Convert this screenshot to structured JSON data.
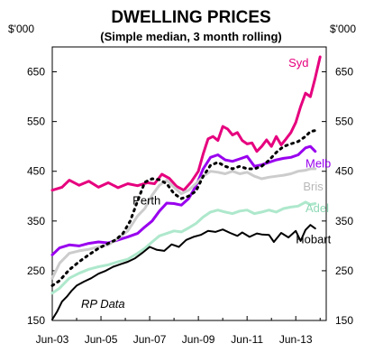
{
  "chart_data": {
    "type": "line",
    "title": "DWELLING PRICES",
    "subtitle": "(Simple median, 3 month rolling)",
    "unit_left": "$'000",
    "unit_right": "$'000",
    "source": "RP Data",
    "x_ticks": [
      "Jun-03",
      "Jun-05",
      "Jun-07",
      "Jun-09",
      "Jun-11",
      "Jun-13"
    ],
    "x_tick_years": [
      2003.5,
      2005.5,
      2007.5,
      2009.5,
      2011.5,
      2013.5
    ],
    "xlim": [
      2003.5,
      2014.75
    ],
    "ylim": [
      150,
      700
    ],
    "y_ticks": [
      150,
      250,
      350,
      450,
      550,
      650
    ],
    "y_tick_labels": [
      "150",
      "250",
      "350",
      "450",
      "550",
      "650"
    ],
    "series": [
      {
        "name": "Syd",
        "color": "#e6007e",
        "width": 3,
        "dash": "",
        "label_pos": [
          2013.2,
          660
        ],
        "points": [
          [
            2003.5,
            412
          ],
          [
            2003.9,
            418
          ],
          [
            2004.2,
            432
          ],
          [
            2004.6,
            422
          ],
          [
            2005.0,
            430
          ],
          [
            2005.4,
            418
          ],
          [
            2005.8,
            427
          ],
          [
            2006.2,
            417
          ],
          [
            2006.6,
            425
          ],
          [
            2007.0,
            421
          ],
          [
            2007.4,
            427
          ],
          [
            2007.7,
            425
          ],
          [
            2008.0,
            444
          ],
          [
            2008.3,
            436
          ],
          [
            2008.6,
            420
          ],
          [
            2008.9,
            412
          ],
          [
            2009.2,
            428
          ],
          [
            2009.5,
            450
          ],
          [
            2009.7,
            485
          ],
          [
            2009.9,
            515
          ],
          [
            2010.1,
            520
          ],
          [
            2010.3,
            512
          ],
          [
            2010.5,
            540
          ],
          [
            2010.7,
            535
          ],
          [
            2010.9,
            523
          ],
          [
            2011.1,
            528
          ],
          [
            2011.3,
            512
          ],
          [
            2011.5,
            505
          ],
          [
            2011.7,
            507
          ],
          [
            2011.9,
            490
          ],
          [
            2012.1,
            500
          ],
          [
            2012.3,
            513
          ],
          [
            2012.5,
            500
          ],
          [
            2012.7,
            520
          ],
          [
            2012.9,
            503
          ],
          [
            2013.1,
            515
          ],
          [
            2013.3,
            528
          ],
          [
            2013.5,
            548
          ],
          [
            2013.7,
            580
          ],
          [
            2013.9,
            607
          ],
          [
            2014.1,
            600
          ],
          [
            2014.3,
            638
          ],
          [
            2014.5,
            680
          ]
        ]
      },
      {
        "name": "Melb",
        "color": "#9900ee",
        "width": 3,
        "dash": "",
        "label_pos": [
          2013.9,
          458
        ],
        "points": [
          [
            2003.5,
            282
          ],
          [
            2003.8,
            296
          ],
          [
            2004.2,
            302
          ],
          [
            2004.6,
            300
          ],
          [
            2005.0,
            305
          ],
          [
            2005.4,
            308
          ],
          [
            2005.8,
            306
          ],
          [
            2006.2,
            312
          ],
          [
            2006.6,
            318
          ],
          [
            2007.0,
            325
          ],
          [
            2007.3,
            338
          ],
          [
            2007.6,
            350
          ],
          [
            2007.9,
            370
          ],
          [
            2008.2,
            386
          ],
          [
            2008.5,
            385
          ],
          [
            2008.8,
            382
          ],
          [
            2009.1,
            395
          ],
          [
            2009.4,
            420
          ],
          [
            2009.7,
            455
          ],
          [
            2010.0,
            478
          ],
          [
            2010.3,
            483
          ],
          [
            2010.6,
            473
          ],
          [
            2010.9,
            470
          ],
          [
            2011.2,
            475
          ],
          [
            2011.5,
            480
          ],
          [
            2011.8,
            460
          ],
          [
            2012.1,
            463
          ],
          [
            2012.4,
            468
          ],
          [
            2012.7,
            473
          ],
          [
            2013.0,
            476
          ],
          [
            2013.3,
            478
          ],
          [
            2013.6,
            483
          ],
          [
            2013.9,
            497
          ],
          [
            2014.1,
            500
          ],
          [
            2014.3,
            490
          ]
        ]
      },
      {
        "name": "Bris",
        "color": "#cccccc",
        "width": 3,
        "dash": "",
        "label_pos": [
          2013.8,
          411
        ],
        "points": [
          [
            2003.5,
            235
          ],
          [
            2003.8,
            265
          ],
          [
            2004.2,
            285
          ],
          [
            2004.6,
            290
          ],
          [
            2005.0,
            293
          ],
          [
            2005.4,
            298
          ],
          [
            2005.8,
            302
          ],
          [
            2006.2,
            315
          ],
          [
            2006.6,
            330
          ],
          [
            2007.0,
            360
          ],
          [
            2007.3,
            375
          ],
          [
            2007.6,
            402
          ],
          [
            2007.9,
            422
          ],
          [
            2008.2,
            432
          ],
          [
            2008.5,
            418
          ],
          [
            2008.8,
            405
          ],
          [
            2009.1,
            412
          ],
          [
            2009.4,
            425
          ],
          [
            2009.7,
            440
          ],
          [
            2010.0,
            450
          ],
          [
            2010.3,
            448
          ],
          [
            2010.6,
            445
          ],
          [
            2010.9,
            450
          ],
          [
            2011.2,
            445
          ],
          [
            2011.5,
            448
          ],
          [
            2011.8,
            440
          ],
          [
            2012.1,
            435
          ],
          [
            2012.4,
            438
          ],
          [
            2012.7,
            440
          ],
          [
            2013.0,
            442
          ],
          [
            2013.3,
            445
          ],
          [
            2013.6,
            450
          ],
          [
            2013.9,
            452
          ],
          [
            2014.1,
            455
          ],
          [
            2014.3,
            455
          ]
        ]
      },
      {
        "name": "Adel",
        "color": "#aee8cc",
        "width": 3,
        "dash": "",
        "label_pos": [
          2013.9,
          368
        ],
        "points": [
          [
            2003.5,
            205
          ],
          [
            2003.8,
            215
          ],
          [
            2004.2,
            235
          ],
          [
            2004.6,
            245
          ],
          [
            2005.0,
            253
          ],
          [
            2005.4,
            258
          ],
          [
            2005.8,
            262
          ],
          [
            2006.2,
            268
          ],
          [
            2006.6,
            273
          ],
          [
            2007.0,
            285
          ],
          [
            2007.3,
            295
          ],
          [
            2007.6,
            308
          ],
          [
            2007.9,
            320
          ],
          [
            2008.2,
            325
          ],
          [
            2008.5,
            330
          ],
          [
            2008.8,
            328
          ],
          [
            2009.1,
            336
          ],
          [
            2009.4,
            345
          ],
          [
            2009.7,
            358
          ],
          [
            2010.0,
            368
          ],
          [
            2010.3,
            372
          ],
          [
            2010.6,
            368
          ],
          [
            2010.9,
            365
          ],
          [
            2011.2,
            370
          ],
          [
            2011.5,
            372
          ],
          [
            2011.8,
            365
          ],
          [
            2012.1,
            368
          ],
          [
            2012.4,
            372
          ],
          [
            2012.7,
            368
          ],
          [
            2013.0,
            375
          ],
          [
            2013.3,
            378
          ],
          [
            2013.6,
            380
          ],
          [
            2013.9,
            388
          ],
          [
            2014.1,
            383
          ],
          [
            2014.3,
            385
          ]
        ]
      },
      {
        "name": "Perth",
        "color": "#000000",
        "width": 3,
        "dash": "2 5",
        "label_pos": [
          2006.8,
          383
        ],
        "points": [
          [
            2003.5,
            220
          ],
          [
            2003.8,
            230
          ],
          [
            2004.2,
            252
          ],
          [
            2004.6,
            268
          ],
          [
            2005.0,
            282
          ],
          [
            2005.4,
            295
          ],
          [
            2005.8,
            305
          ],
          [
            2006.1,
            312
          ],
          [
            2006.4,
            325
          ],
          [
            2006.7,
            350
          ],
          [
            2007.0,
            390
          ],
          [
            2007.3,
            428
          ],
          [
            2007.6,
            435
          ],
          [
            2007.9,
            433
          ],
          [
            2008.2,
            425
          ],
          [
            2008.5,
            405
          ],
          [
            2008.8,
            395
          ],
          [
            2009.1,
            400
          ],
          [
            2009.4,
            410
          ],
          [
            2009.7,
            440
          ],
          [
            2010.0,
            462
          ],
          [
            2010.3,
            468
          ],
          [
            2010.6,
            460
          ],
          [
            2010.9,
            455
          ],
          [
            2011.2,
            460
          ],
          [
            2011.5,
            455
          ],
          [
            2011.8,
            455
          ],
          [
            2012.1,
            460
          ],
          [
            2012.4,
            472
          ],
          [
            2012.7,
            488
          ],
          [
            2013.0,
            500
          ],
          [
            2013.3,
            505
          ],
          [
            2013.6,
            510
          ],
          [
            2013.9,
            520
          ],
          [
            2014.1,
            530
          ],
          [
            2014.3,
            532
          ]
        ]
      },
      {
        "name": "Hobart",
        "color": "#000000",
        "width": 2,
        "dash": "",
        "label_pos": [
          2013.5,
          305
        ],
        "points": [
          [
            2003.5,
            152
          ],
          [
            2003.7,
            168
          ],
          [
            2003.9,
            188
          ],
          [
            2004.1,
            198
          ],
          [
            2004.3,
            210
          ],
          [
            2004.5,
            220
          ],
          [
            2004.8,
            228
          ],
          [
            2005.1,
            235
          ],
          [
            2005.4,
            244
          ],
          [
            2005.7,
            250
          ],
          [
            2006.0,
            258
          ],
          [
            2006.3,
            263
          ],
          [
            2006.6,
            268
          ],
          [
            2006.9,
            275
          ],
          [
            2007.2,
            286
          ],
          [
            2007.5,
            298
          ],
          [
            2007.8,
            292
          ],
          [
            2008.1,
            290
          ],
          [
            2008.4,
            303
          ],
          [
            2008.7,
            298
          ],
          [
            2009.0,
            312
          ],
          [
            2009.3,
            318
          ],
          [
            2009.6,
            322
          ],
          [
            2009.9,
            330
          ],
          [
            2010.2,
            328
          ],
          [
            2010.5,
            333
          ],
          [
            2010.8,
            326
          ],
          [
            2011.1,
            320
          ],
          [
            2011.3,
            327
          ],
          [
            2011.6,
            318
          ],
          [
            2011.9,
            325
          ],
          [
            2012.1,
            323
          ],
          [
            2012.4,
            322
          ],
          [
            2012.6,
            308
          ],
          [
            2012.9,
            326
          ],
          [
            2013.2,
            317
          ],
          [
            2013.5,
            330
          ],
          [
            2013.7,
            310
          ],
          [
            2013.9,
            332
          ],
          [
            2014.1,
            342
          ],
          [
            2014.3,
            335
          ]
        ]
      }
    ]
  }
}
